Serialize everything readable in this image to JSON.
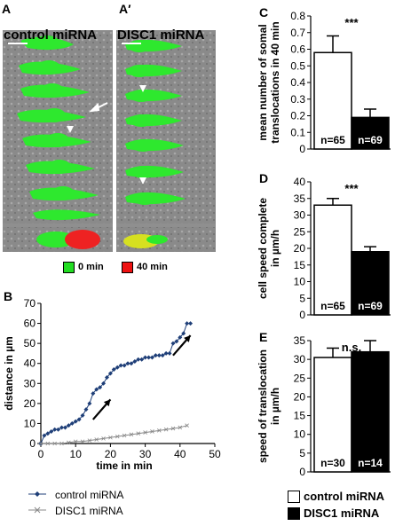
{
  "panels": {
    "A": {
      "letter": "A",
      "title": "control miRNA"
    },
    "A2": {
      "letter": "A′",
      "title": "DISC1 miRNA"
    },
    "B": {
      "letter": "B"
    },
    "C": {
      "letter": "C"
    },
    "D": {
      "letter": "D"
    },
    "E": {
      "letter": "E"
    }
  },
  "time_legend": {
    "items": [
      {
        "label": "0 min",
        "color": "#22dd22"
      },
      {
        "label": "40 min",
        "color": "#ee1111"
      }
    ]
  },
  "bar_legend": {
    "items": [
      {
        "label": "control miRNA",
        "fill": "#ffffff"
      },
      {
        "label": "DISC1 miRNA",
        "fill": "#000000"
      }
    ]
  },
  "line_legend": {
    "items": [
      {
        "label": "control miRNA",
        "marker": "diamond"
      },
      {
        "label": "DISC1 miRNA",
        "marker": "x"
      }
    ]
  },
  "chart_data": [
    {
      "id": "B",
      "type": "line",
      "xlabel": "time in min",
      "ylabel": "distance in µm",
      "xlim": [
        0,
        50
      ],
      "ylim": [
        0,
        70
      ],
      "xticks": [
        0,
        10,
        20,
        30,
        40,
        50
      ],
      "yticks": [
        0,
        10,
        20,
        30,
        40,
        50,
        60,
        70
      ],
      "series": [
        {
          "name": "control miRNA",
          "marker": "diamond",
          "color": "#1f3f78",
          "x": [
            0,
            1,
            2,
            3,
            4,
            5,
            6,
            7,
            8,
            9,
            10,
            11,
            12,
            13,
            14,
            15,
            16,
            17,
            18,
            19,
            20,
            21,
            22,
            23,
            24,
            25,
            26,
            27,
            28,
            29,
            30,
            31,
            32,
            33,
            34,
            35,
            36,
            37,
            38,
            39,
            40,
            41,
            42,
            43
          ],
          "y": [
            0,
            4,
            5,
            6,
            7,
            7,
            8,
            8,
            9,
            10,
            11,
            12,
            14,
            17,
            20,
            25,
            27,
            28,
            30,
            33,
            35,
            37,
            38,
            39,
            39,
            40,
            40,
            41,
            42,
            42,
            43,
            43,
            43,
            44,
            44,
            44,
            45,
            45,
            50,
            51,
            53,
            55,
            60,
            60
          ]
        },
        {
          "name": "DISC1 miRNA",
          "marker": "x",
          "color": "#888888",
          "x": [
            0,
            2,
            4,
            6,
            8,
            10,
            12,
            14,
            16,
            18,
            20,
            22,
            24,
            26,
            28,
            30,
            32,
            34,
            36,
            38,
            40,
            42
          ],
          "y": [
            0,
            0,
            0,
            0,
            0.5,
            1,
            1,
            1.5,
            2,
            2.5,
            3,
            3.5,
            4,
            4.5,
            5,
            5.5,
            6,
            6.5,
            7,
            7.5,
            8,
            9
          ]
        }
      ]
    },
    {
      "id": "C",
      "type": "bar",
      "ylabel_lines": [
        "mean number of somal",
        "translocations in 40 min"
      ],
      "ylim": [
        0,
        0.8
      ],
      "yticks": [
        0,
        0.1,
        0.2,
        0.3,
        0.4,
        0.5,
        0.6,
        0.7,
        0.8
      ],
      "ytick_labels": [
        "0",
        "0.1",
        "0.2",
        "0.3",
        "0.4",
        "0.5",
        "0.6",
        "0.7",
        "0.8"
      ],
      "significance": "***",
      "bars": [
        {
          "name": "control miRNA",
          "value": 0.58,
          "error": 0.1,
          "n_label": "n=65",
          "fill": "#ffffff"
        },
        {
          "name": "DISC1 miRNA",
          "value": 0.19,
          "error": 0.05,
          "n_label": "n=69",
          "fill": "#000000"
        }
      ]
    },
    {
      "id": "D",
      "type": "bar",
      "ylabel_lines": [
        "cell speed complete",
        "in µm/h"
      ],
      "ylim": [
        0,
        40
      ],
      "yticks": [
        0,
        5,
        10,
        15,
        20,
        25,
        30,
        35,
        40
      ],
      "ytick_labels": [
        "0",
        "5",
        "10",
        "15",
        "20",
        "25",
        "30",
        "35",
        "40"
      ],
      "significance": "***",
      "bars": [
        {
          "name": "control miRNA",
          "value": 33,
          "error": 2,
          "n_label": "n=65",
          "fill": "#ffffff"
        },
        {
          "name": "DISC1 miRNA",
          "value": 19,
          "error": 1.5,
          "n_label": "n=69",
          "fill": "#000000"
        }
      ]
    },
    {
      "id": "E",
      "type": "bar",
      "ylabel_lines": [
        "speed of translocation",
        "in µm/h"
      ],
      "ylim": [
        0,
        35
      ],
      "yticks": [
        0,
        5,
        10,
        15,
        20,
        25,
        30,
        35
      ],
      "ytick_labels": [
        "0",
        "5",
        "10",
        "15",
        "20",
        "25",
        "30",
        "35"
      ],
      "significance": "n.s.",
      "bars": [
        {
          "name": "control miRNA",
          "value": 30.5,
          "error": 2.5,
          "n_label": "n=30",
          "fill": "#ffffff"
        },
        {
          "name": "DISC1 miRNA",
          "value": 32,
          "error": 3,
          "n_label": "n=14",
          "fill": "#000000"
        }
      ]
    }
  ]
}
